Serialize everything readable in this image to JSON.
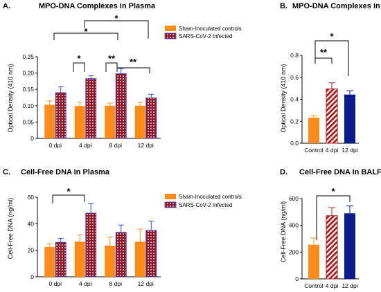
{
  "colors": {
    "sham": "#ff8c1a",
    "sars_fill": "#8b1a2b",
    "sars_dot": "#ffffff",
    "sars_edge": "#3a2fb8",
    "control": "#ff8c1a",
    "dpi4": "#a61c1c",
    "dpi12": "#0b1a8c",
    "error": "#2b4bd8"
  },
  "chart_data": [
    {
      "id": "A",
      "type": "bar",
      "panel_label": "A.",
      "title": "MPO-DNA Complexes in Plasma",
      "xlabel": "",
      "ylabel": "Optical Density (410 nm)",
      "ylim": [
        0,
        0.25
      ],
      "yticks": [
        "0",
        "0.05",
        "0.10",
        "0.15",
        "0.20",
        "0.25"
      ],
      "categories": [
        "0 dpi",
        "4 dpi",
        "8 dpi",
        "12 dpi"
      ],
      "series": [
        {
          "name": "Sham-Inoculated controls",
          "values": [
            0.103,
            0.099,
            0.1,
            0.1
          ],
          "errors": [
            0.012,
            0.012,
            0.008,
            0.01
          ]
        },
        {
          "name": "SARS-CoV-2 Infected",
          "values": [
            0.14,
            0.183,
            0.198,
            0.124
          ],
          "errors": [
            0.018,
            0.009,
            0.016,
            0.011
          ]
        }
      ],
      "legend": [
        "Sham-Inoculated controls",
        "SARS-CoV-2 Infected"
      ],
      "annotations": [
        "*",
        "*",
        "*",
        "**",
        "**"
      ]
    },
    {
      "id": "B",
      "type": "bar",
      "panel_label": "B.",
      "title": "MPO-DNA Complexes in BALF",
      "xlabel": "",
      "ylabel": "Optical Density (410 nm)",
      "ylim": [
        0,
        0.8
      ],
      "yticks": [
        "0.0",
        "0.2",
        "0.4",
        "0.6",
        "0.8"
      ],
      "categories": [
        "Control",
        "4 dpi",
        "12 dpi"
      ],
      "values": [
        0.232,
        0.495,
        0.443
      ],
      "errors": [
        0.02,
        0.055,
        0.035
      ],
      "annotations": [
        "*",
        "**"
      ]
    },
    {
      "id": "C",
      "type": "bar",
      "panel_label": "C.",
      "title": "Cell-Free DNA in Plasma",
      "xlabel": "",
      "ylabel": "Cell-Free DNA (ng/ml)",
      "ylim": [
        0,
        60
      ],
      "yticks": [
        "0",
        "20",
        "40",
        "60"
      ],
      "categories": [
        "0 dpi",
        "4 dpi",
        "8 dpi",
        "12 dpi"
      ],
      "series": [
        {
          "name": "Sham-Inoculated controls",
          "values": [
            22.5,
            26.5,
            23.5,
            26.5
          ],
          "errors": [
            2.5,
            5.0,
            6.5,
            9.5
          ]
        },
        {
          "name": "SARS-CoV-2 Infected",
          "values": [
            26.0,
            48.0,
            33.5,
            35.0
          ],
          "errors": [
            3.0,
            7.0,
            5.5,
            7.0
          ]
        }
      ],
      "legend": [
        "Sham-Inoculated controls",
        "SARS-CoV-2 Infected"
      ],
      "annotations": [
        "*"
      ]
    },
    {
      "id": "D",
      "type": "bar",
      "panel_label": "D.",
      "title": "Cell-Free DNA in BALF",
      "xlabel": "",
      "ylabel": "Cell-Free DNA (ng/ml)",
      "ylim": [
        0,
        600
      ],
      "yticks": [
        "0",
        "200",
        "400",
        "600"
      ],
      "categories": [
        "Control",
        "4 dpi",
        "12 dpi"
      ],
      "values": [
        255,
        472,
        490
      ],
      "errors": [
        50,
        60,
        55
      ],
      "annotations": [
        "*"
      ]
    }
  ]
}
